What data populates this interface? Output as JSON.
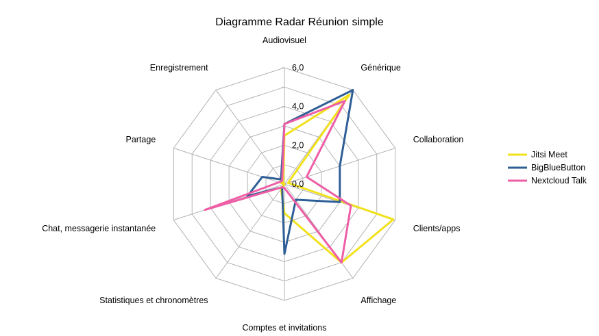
{
  "chart_data": {
    "type": "radar",
    "title": "Diagramme Radar Réunion simple",
    "categories": [
      "Audiovisuel",
      "Générique",
      "Collaboration",
      "Clients/apps",
      "Affichage",
      "Comptes et invitations",
      "Statistiques et chronomètres",
      "Chat, messagerie instantanée",
      "Partage",
      "Enregistrement"
    ],
    "rlim": [
      0,
      6
    ],
    "ticks": [
      "0,0",
      "2,0",
      "4,0",
      "6,0"
    ],
    "tick_values": [
      0,
      2,
      4,
      6
    ],
    "grid": true,
    "legend_position": "right",
    "series": [
      {
        "name": "Jitsi Meet",
        "color": "#f2e11a",
        "values": [
          2.5,
          5.7,
          0.2,
          5.9,
          5.0,
          1.5,
          0.3,
          0.0,
          0.2,
          0.1
        ]
      },
      {
        "name": "BigBlueButton",
        "color": "#2e5e96",
        "values": [
          3.1,
          6.0,
          3.0,
          3.0,
          1.0,
          3.6,
          0.2,
          2.0,
          1.2,
          0.3
        ]
      },
      {
        "name": "Nextcloud Talk",
        "color": "#ee5ea6",
        "values": [
          3.1,
          5.3,
          1.2,
          3.6,
          5.0,
          0.2,
          0.2,
          4.3,
          0.3,
          0.2
        ]
      }
    ]
  }
}
